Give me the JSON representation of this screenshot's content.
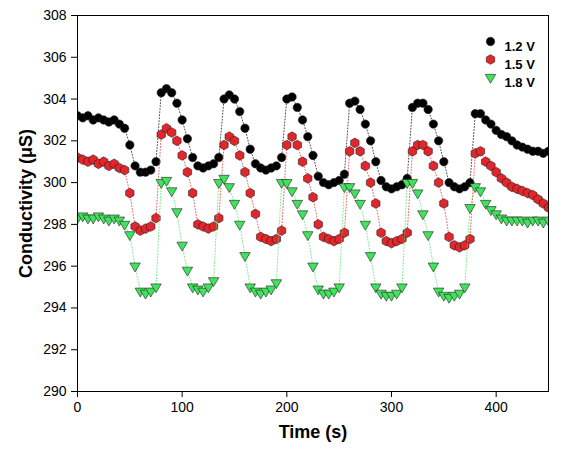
{
  "chart_data": {
    "type": "line",
    "marker": "circle",
    "line_style": "dotted",
    "x_label": "Time (s)",
    "y_label": "Conductivity (μS)",
    "xlim": [
      0,
      450
    ],
    "xticks": [
      0,
      100,
      200,
      300,
      400
    ],
    "ylim": [
      290,
      308
    ],
    "yticks": [
      290,
      292,
      294,
      296,
      298,
      300,
      302,
      304,
      306,
      308
    ],
    "legend": "top-right",
    "grid": false,
    "x": [
      0,
      5,
      10,
      15,
      20,
      25,
      30,
      35,
      40,
      45,
      50,
      55,
      60,
      65,
      70,
      75,
      80,
      85,
      90,
      95,
      100,
      105,
      110,
      115,
      120,
      125,
      130,
      135,
      140,
      145,
      150,
      155,
      160,
      165,
      170,
      175,
      180,
      185,
      190,
      195,
      200,
      205,
      210,
      215,
      220,
      225,
      230,
      235,
      240,
      245,
      250,
      255,
      260,
      265,
      270,
      275,
      280,
      285,
      290,
      295,
      300,
      305,
      310,
      315,
      320,
      325,
      330,
      335,
      340,
      345,
      350,
      355,
      360,
      365,
      370,
      375,
      380,
      385,
      390,
      395,
      400,
      405,
      410,
      415,
      420,
      425,
      430,
      435,
      440,
      445,
      450
    ],
    "series": [
      {
        "name": "1.2 V",
        "color": "#000000",
        "marker": "circle",
        "values": [
          303.2,
          303.1,
          303.2,
          303.0,
          303.1,
          303.0,
          302.9,
          303.0,
          302.8,
          302.6,
          301.8,
          300.8,
          300.5,
          300.5,
          300.6,
          301.0,
          304.3,
          304.5,
          304.3,
          303.8,
          303.0,
          302.1,
          301.2,
          300.8,
          300.7,
          300.8,
          300.9,
          301.2,
          304.0,
          304.2,
          304.0,
          303.4,
          302.6,
          301.6,
          300.9,
          300.7,
          300.6,
          300.7,
          300.8,
          301.2,
          304.0,
          304.1,
          303.6,
          303.0,
          302.2,
          301.3,
          300.3,
          300.0,
          299.9,
          300.0,
          300.1,
          300.4,
          303.8,
          303.9,
          303.5,
          302.8,
          302.0,
          301.0,
          300.1,
          299.8,
          299.7,
          299.8,
          299.9,
          300.2,
          303.6,
          303.8,
          303.8,
          303.5,
          302.8,
          302.0,
          301.0,
          300.0,
          299.8,
          299.7,
          299.8,
          300.0,
          303.3,
          303.3,
          303.0,
          302.8,
          302.5,
          302.3,
          302.2,
          302.0,
          301.8,
          301.7,
          301.6,
          301.5,
          301.5,
          301.4,
          301.5
        ]
      },
      {
        "name": "1.5 V",
        "color": "#e3262b",
        "marker": "hexagon",
        "values": [
          301.2,
          301.1,
          301.0,
          301.1,
          300.9,
          301.0,
          300.8,
          300.9,
          300.7,
          300.6,
          299.5,
          297.9,
          297.7,
          297.8,
          297.9,
          298.3,
          302.3,
          302.6,
          302.4,
          302.0,
          301.3,
          300.5,
          299.5,
          298.0,
          297.9,
          297.8,
          297.9,
          298.3,
          301.8,
          302.2,
          302.0,
          301.3,
          300.5,
          299.5,
          298.5,
          297.4,
          297.3,
          297.2,
          297.3,
          297.7,
          301.8,
          302.2,
          301.8,
          301.0,
          300.2,
          299.3,
          298.0,
          297.4,
          297.3,
          297.2,
          297.3,
          297.6,
          301.5,
          301.9,
          301.5,
          300.8,
          300.0,
          299.0,
          297.6,
          297.2,
          297.1,
          297.2,
          297.3,
          297.6,
          301.5,
          301.8,
          301.8,
          301.5,
          300.8,
          300.0,
          299.0,
          297.4,
          297.0,
          296.9,
          297.0,
          297.3,
          301.4,
          301.5,
          301.0,
          300.8,
          300.5,
          300.2,
          300.0,
          299.8,
          299.7,
          299.6,
          299.5,
          299.4,
          299.2,
          299.0,
          298.8
        ]
      },
      {
        "name": "1.8 V",
        "color": "#3fe35c",
        "marker": "triangle-down",
        "values": [
          298.3,
          298.4,
          298.3,
          298.3,
          298.4,
          298.3,
          298.2,
          298.3,
          298.2,
          298.0,
          297.5,
          296.0,
          294.8,
          294.7,
          294.8,
          295.0,
          300.0,
          300.1,
          299.6,
          298.6,
          297.0,
          295.8,
          295.0,
          294.9,
          294.8,
          295.0,
          295.3,
          300.0,
          300.2,
          299.8,
          299.0,
          298.0,
          296.5,
          295.0,
          294.8,
          294.7,
          294.8,
          294.9,
          295.2,
          300.0,
          300.0,
          299.6,
          299.0,
          298.5,
          297.5,
          296.0,
          294.9,
          294.7,
          294.7,
          294.8,
          295.0,
          299.8,
          299.8,
          299.5,
          299.0,
          298.0,
          296.5,
          295.0,
          294.7,
          294.6,
          294.6,
          294.7,
          295.0,
          300.0,
          300.0,
          299.5,
          298.5,
          297.5,
          296.0,
          294.8,
          294.6,
          294.5,
          294.6,
          294.7,
          295.0,
          298.8,
          299.8,
          299.6,
          299.0,
          298.7,
          298.5,
          298.3,
          298.2,
          298.2,
          298.2,
          298.2,
          298.1,
          298.2,
          298.2,
          298.1,
          298.2
        ]
      }
    ]
  }
}
